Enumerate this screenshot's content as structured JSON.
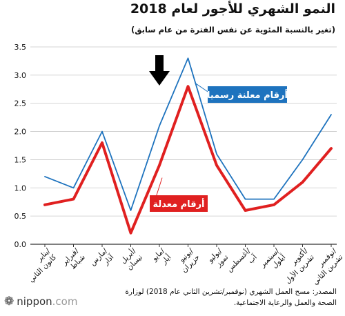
{
  "title": "النمو الشهري للأجور لعام 2018",
  "unit_label": "(تغير بالنسبة المئوية عن نفس الفترة من عام سابق)",
  "chart_data": {
    "type": "line",
    "categories": [
      "يناير/كانون الثاني",
      "فبراير/شباط",
      "مارس/آذار",
      "أبريل/نيسان",
      "مايو/أيار",
      "يونيو/حزيران",
      "يوليو/تموز",
      "أغسطس/آب",
      "سبتمبر/أيلول",
      "أكتوبر/تشرين الأول",
      "نوفمبر/تشرين الثاني"
    ],
    "series": [
      {
        "name": "أرقام معلنة رسميا",
        "color": "#1e73be",
        "values": [
          1.2,
          1.0,
          2.0,
          0.6,
          2.1,
          3.3,
          1.6,
          0.8,
          0.8,
          1.5,
          2.3
        ]
      },
      {
        "name": "أرقام معدلة",
        "color": "#e02020",
        "values": [
          0.7,
          0.8,
          1.8,
          0.2,
          1.4,
          2.8,
          1.4,
          0.6,
          0.7,
          1.1,
          1.7
        ]
      }
    ],
    "y_ticks": [
      "0.0",
      "0.5",
      "1.0",
      "1.5",
      "2.0",
      "2.5",
      "3.0",
      "3.5"
    ],
    "ylim": [
      0,
      3.5
    ],
    "grid": true,
    "arrow_at": "مايو/أيار"
  },
  "source_text": "المصدر: مسح العمل الشهري (نوفمبر/تشرين الثاني عام 2018) لوزارة الصحة والعمل والرعاية الاجتماعية.",
  "brand": {
    "mark": "❁",
    "name": "nippon",
    "tld": ".com"
  }
}
